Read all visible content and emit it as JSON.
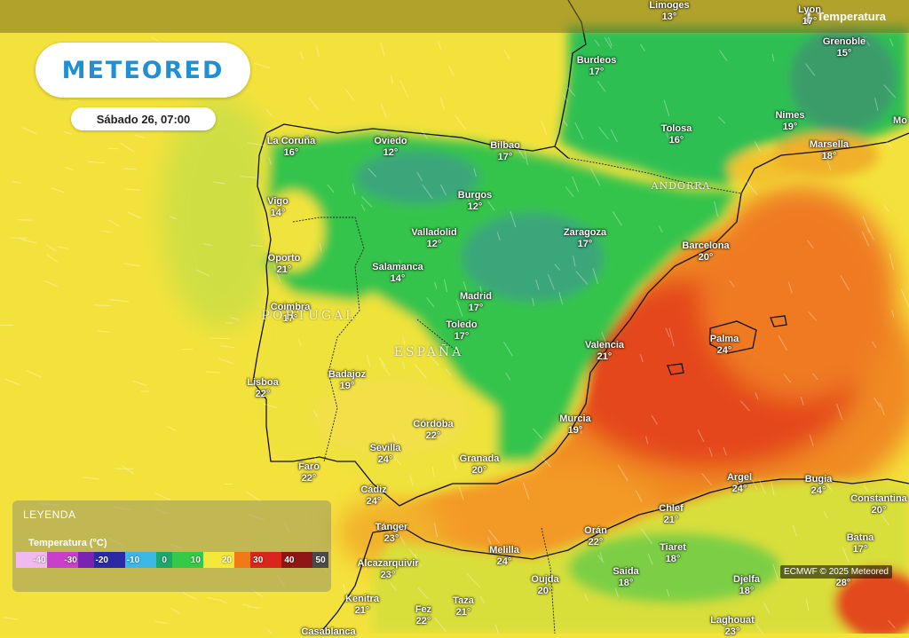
{
  "brand": {
    "name": "METEORED"
  },
  "date_label": "Sábado 26, 07:00",
  "layer": {
    "label": "Temperatura",
    "icon": "thermometer-icon"
  },
  "legend": {
    "title": "LEYENDA",
    "subtitle": "Temperatura (°C)",
    "ticks": [
      "-40",
      "-30",
      "-20",
      "-10",
      "0",
      "10",
      "20",
      "30",
      "40",
      "50"
    ],
    "colors": [
      "#f2b8f0",
      "#c93fcb",
      "#7a22b2",
      "#2a2aa8",
      "#3db7e6",
      "#1ba86b",
      "#35c948",
      "#f4e83a",
      "#f07a16",
      "#d8261c",
      "#8f1616",
      "#4a4a4a"
    ]
  },
  "credit": "ECMWF © 2025 Meteored",
  "countries": [
    "PORTUGAL",
    "ESPAÑA",
    "ANDORRA"
  ],
  "cities": [
    {
      "name": "Limoges",
      "temp": "13°"
    },
    {
      "name": "Lyon",
      "temp": "17°"
    },
    {
      "name": "Grenoble",
      "temp": "15°"
    },
    {
      "name": "Burdeos",
      "temp": "17°"
    },
    {
      "name": "Nimes",
      "temp": "19°"
    },
    {
      "name": "Mo",
      "temp": ""
    },
    {
      "name": "Tolosa",
      "temp": "16°"
    },
    {
      "name": "Marsella",
      "temp": "18°"
    },
    {
      "name": "La Coruña",
      "temp": "16°"
    },
    {
      "name": "Oviedo",
      "temp": "12°"
    },
    {
      "name": "Bilbao",
      "temp": "17°"
    },
    {
      "name": "Vigo",
      "temp": "14°"
    },
    {
      "name": "Burgos",
      "temp": "12°"
    },
    {
      "name": "Valladolid",
      "temp": "12°"
    },
    {
      "name": "Zaragoza",
      "temp": "17°"
    },
    {
      "name": "Barcelona",
      "temp": "20°"
    },
    {
      "name": "Oporto",
      "temp": "21°"
    },
    {
      "name": "Salamanca",
      "temp": "14°"
    },
    {
      "name": "Coimbra",
      "temp": "17°"
    },
    {
      "name": "Madrid",
      "temp": "17°"
    },
    {
      "name": "Toledo",
      "temp": "17°"
    },
    {
      "name": "Palma",
      "temp": "24°"
    },
    {
      "name": "Valencia",
      "temp": "21°"
    },
    {
      "name": "Lisboa",
      "temp": "22°"
    },
    {
      "name": "Badajoz",
      "temp": "19°"
    },
    {
      "name": "Córdoba",
      "temp": "22°"
    },
    {
      "name": "Murcia",
      "temp": "19°"
    },
    {
      "name": "Sevilla",
      "temp": "24°"
    },
    {
      "name": "Granada",
      "temp": "20°"
    },
    {
      "name": "Faro",
      "temp": "22°"
    },
    {
      "name": "Cádiz",
      "temp": "24°"
    },
    {
      "name": "Argel",
      "temp": "24°"
    },
    {
      "name": "Bugia",
      "temp": "24°"
    },
    {
      "name": "Constantina",
      "temp": "20°"
    },
    {
      "name": "Chlef",
      "temp": "21°"
    },
    {
      "name": "Tánger",
      "temp": "23°"
    },
    {
      "name": "Melilla",
      "temp": "24°"
    },
    {
      "name": "Orán",
      "temp": "22°"
    },
    {
      "name": "Tiaret",
      "temp": "18°"
    },
    {
      "name": "Batna",
      "temp": "17°"
    },
    {
      "name": "Alcazarquivir",
      "temp": "23°"
    },
    {
      "name": "Oujda",
      "temp": "20°"
    },
    {
      "name": "Saida",
      "temp": "18°"
    },
    {
      "name": "Djelfa",
      "temp": "18°"
    },
    {
      "name": "Kenitra",
      "temp": "21°"
    },
    {
      "name": "Fez",
      "temp": "22°"
    },
    {
      "name": "Taza",
      "temp": "21°"
    },
    {
      "name": "Laghouat",
      "temp": "23°"
    },
    {
      "name": "Casablanca",
      "temp": ""
    },
    {
      "name": "",
      "temp": "28°"
    }
  ]
}
